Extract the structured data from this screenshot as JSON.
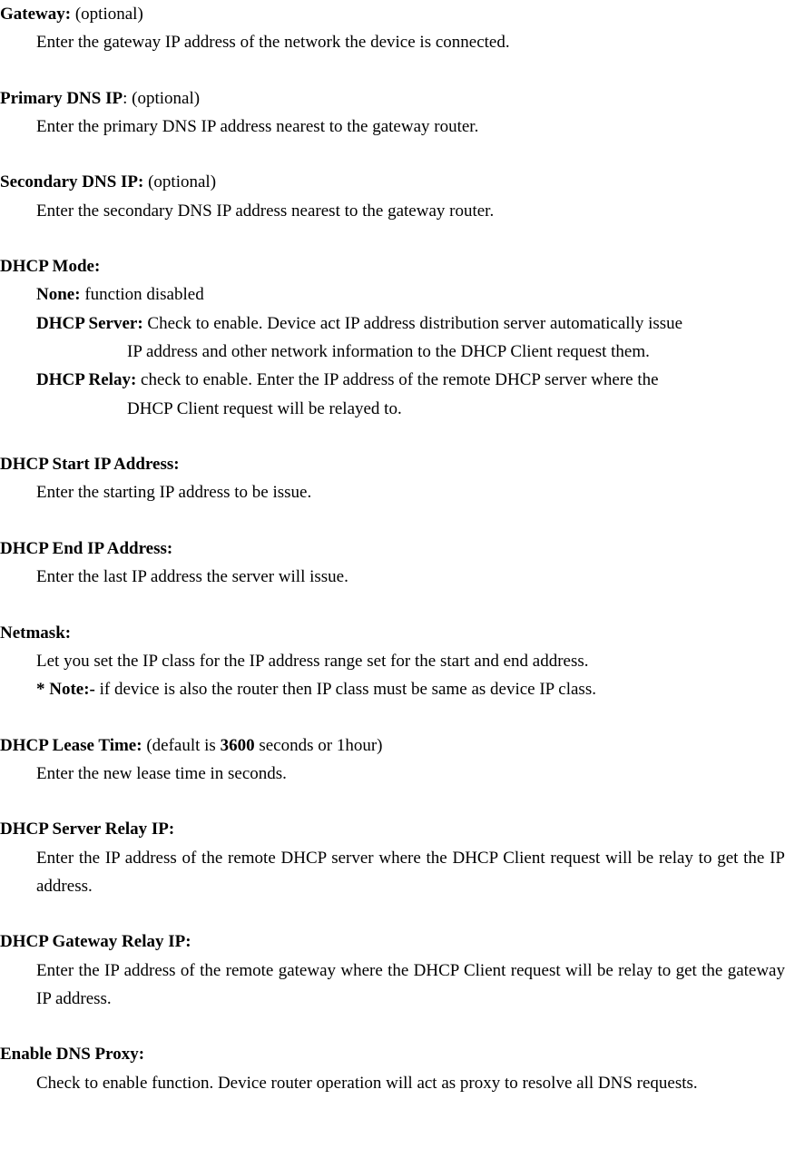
{
  "s1": {
    "title": "Gateway:",
    "title_note": " (optional)",
    "body": "Enter the gateway IP address of the network the device is connected."
  },
  "s2": {
    "title": "Primary DNS IP",
    "title_note": ": (optional)",
    "body": "Enter the primary DNS IP address nearest to the gateway router."
  },
  "s3": {
    "title": "Secondary DNS IP:",
    "title_note": " (optional)",
    "body": "Enter the secondary DNS IP address nearest to the gateway router."
  },
  "s4": {
    "title": "DHCP Mode:",
    "none_label": "None: ",
    "none_text": "function disabled",
    "server_label": "DHCP Server: ",
    "server_text1": "Check to enable. Device act IP address distribution server automatically issue",
    "server_text2": "IP address and other network information to the DHCP Client request them.",
    "relay_label": "DHCP Relay: ",
    "relay_text1": "check to enable. Enter the IP address of the remote DHCP server where the",
    "relay_text2": "DHCP Client request will be relayed to."
  },
  "s5": {
    "title": "DHCP Start IP Address:",
    "body": "Enter the starting IP address to be issue."
  },
  "s6": {
    "title": "DHCP End IP Address:",
    "body": "Enter the last IP address the server will issue."
  },
  "s7": {
    "title": "Netmask:",
    "body1": "Let you set the IP class for the IP address range set for the start and end address.",
    "note_label": "* Note:- ",
    "note_text": "if device is also the router then IP class must be same as device IP class."
  },
  "s8": {
    "title": "DHCP Lease Time: ",
    "note_pre": "(default is ",
    "note_bold": "3600",
    "note_post": " seconds or 1hour)",
    "body": "Enter the new lease time in seconds."
  },
  "s9": {
    "title": "DHCP Server Relay IP:",
    "body": "Enter the IP address of the remote DHCP server where the DHCP Client request will be relay to get the IP address."
  },
  "s10": {
    "title": "DHCP Gateway Relay IP:",
    "body": "Enter the IP address of the remote gateway where the DHCP Client request will be relay to get the gateway IP address."
  },
  "s11": {
    "title": "Enable DNS Proxy:",
    "body": "Check to enable function. Device router operation will act as proxy to resolve all DNS requests."
  }
}
